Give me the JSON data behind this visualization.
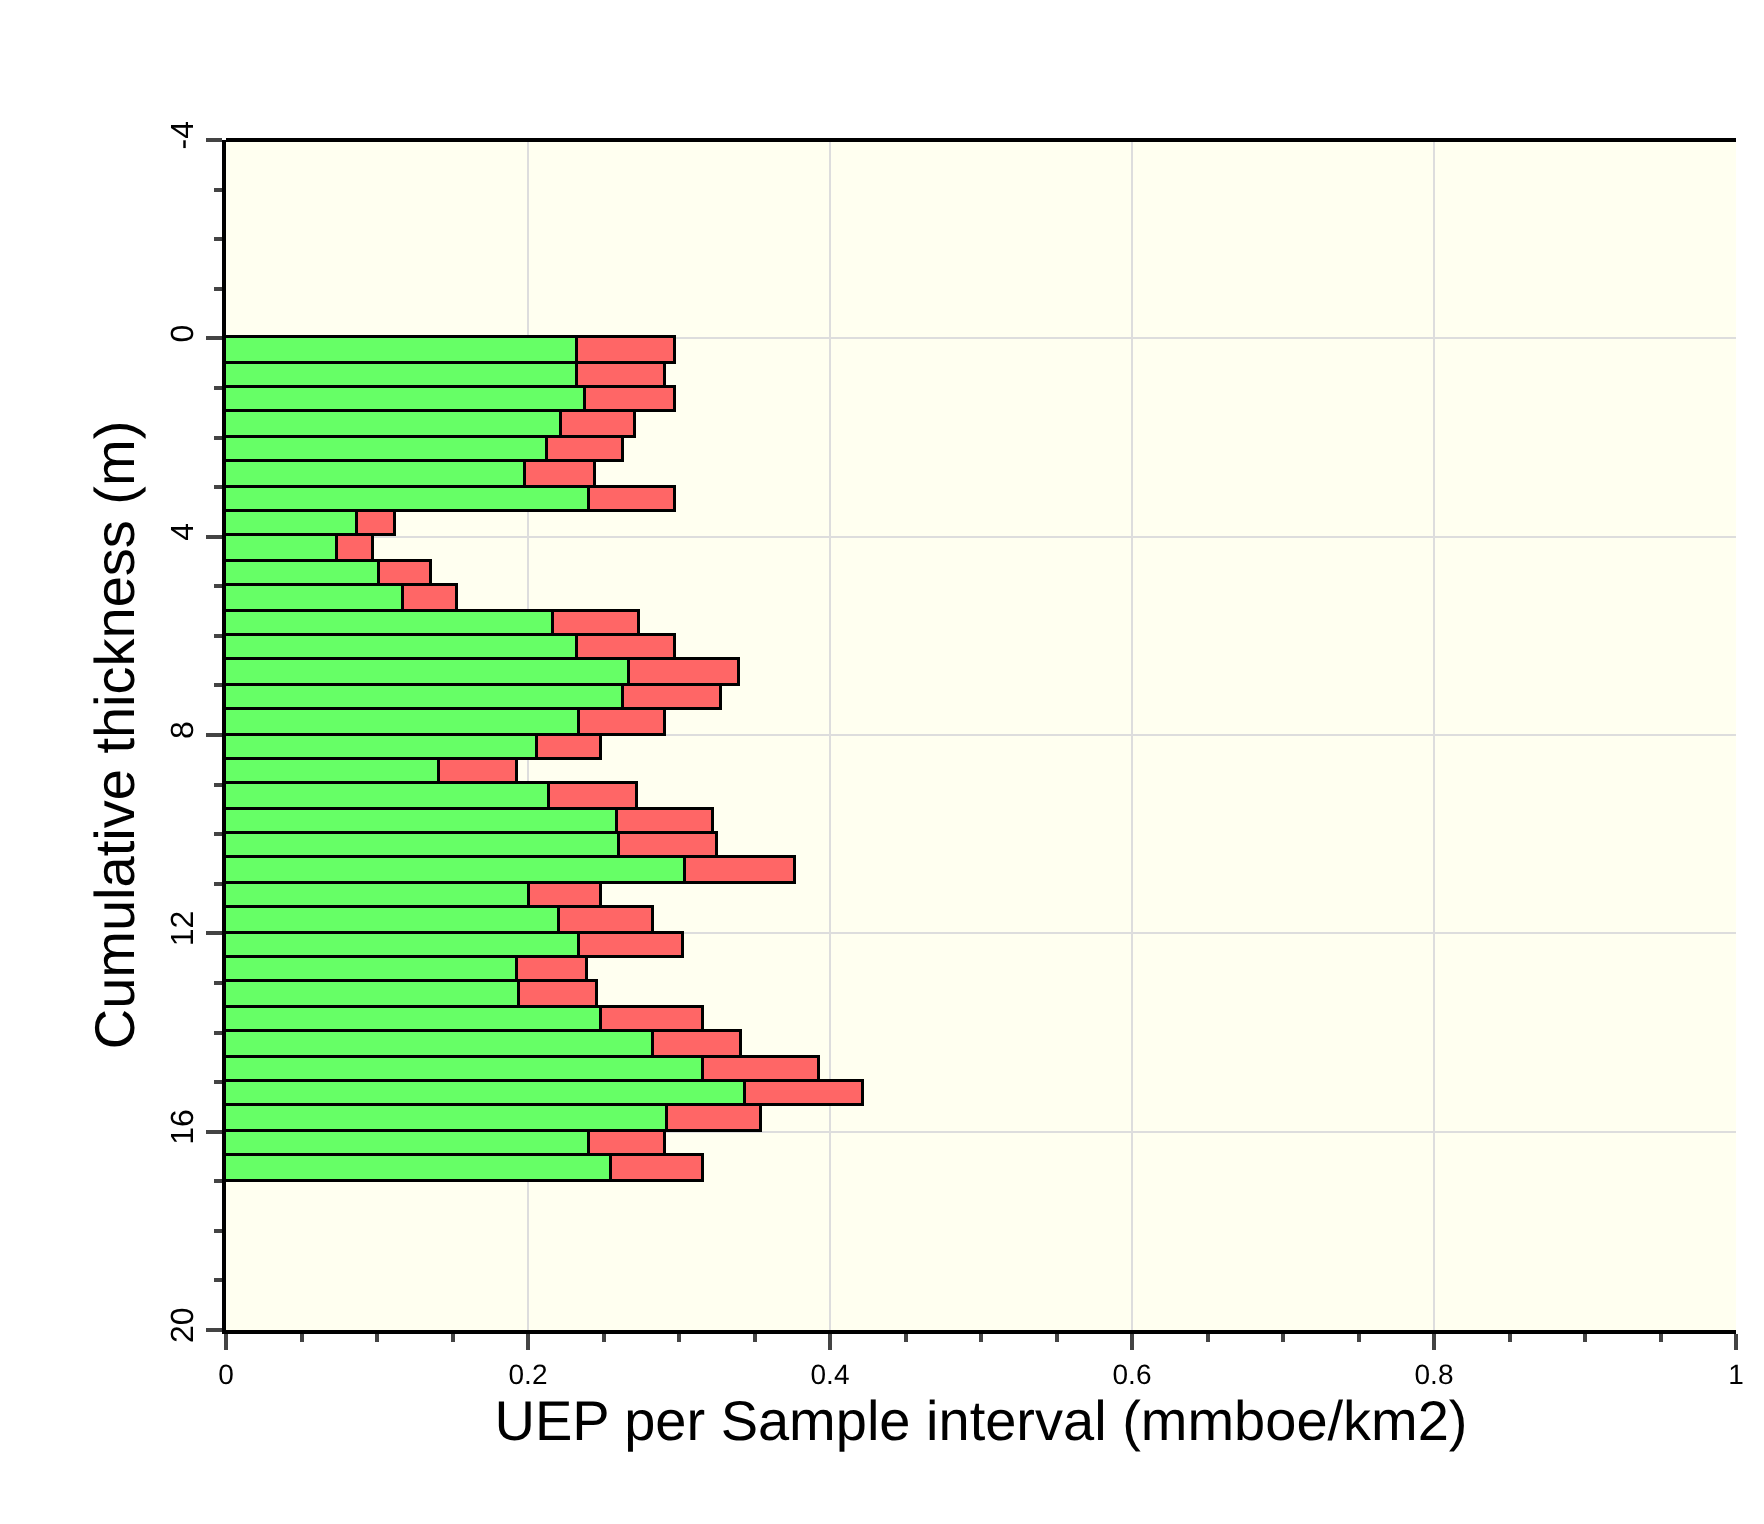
{
  "chart_data": {
    "type": "bar",
    "orientation": "horizontal",
    "stacked": true,
    "xlabel": "UEP per Sample interval (mmboe/km2)",
    "ylabel": "Cumulative thickness (m)",
    "x": [
      0.25,
      0.75,
      1.25,
      1.75,
      2.25,
      2.75,
      3.25,
      3.75,
      4.25,
      4.75,
      5.25,
      5.75,
      6.25,
      6.75,
      7.25,
      7.75,
      8.25,
      8.75,
      9.25,
      9.75,
      10.25,
      10.75,
      11.25,
      11.75,
      12.25,
      12.75,
      13.25,
      13.75,
      14.25,
      14.75,
      15.25,
      15.75,
      16.25,
      16.75
    ],
    "series": [
      {
        "color": "#66ff66",
        "values": [
          0.233,
          0.233,
          0.239,
          0.223,
          0.213,
          0.199,
          0.241,
          0.088,
          0.074,
          0.102,
          0.118,
          0.217,
          0.233,
          0.267,
          0.263,
          0.235,
          0.206,
          0.142,
          0.215,
          0.259,
          0.261,
          0.304,
          0.201,
          0.221,
          0.235,
          0.193,
          0.195,
          0.249,
          0.283,
          0.317,
          0.344,
          0.293,
          0.241,
          0.255
        ]
      },
      {
        "color": "#ff6666",
        "values": [
          0.065,
          0.058,
          0.059,
          0.048,
          0.05,
          0.046,
          0.057,
          0.024,
          0.024,
          0.034,
          0.035,
          0.057,
          0.065,
          0.073,
          0.065,
          0.056,
          0.043,
          0.052,
          0.058,
          0.064,
          0.065,
          0.074,
          0.048,
          0.062,
          0.068,
          0.047,
          0.052,
          0.068,
          0.059,
          0.077,
          0.078,
          0.062,
          0.05,
          0.061
        ]
      }
    ],
    "xlim": [
      0,
      1
    ],
    "xticks": [
      0,
      0.2,
      0.4,
      0.6,
      0.8,
      1
    ],
    "ylim": [
      20,
      -4
    ],
    "yticks": [
      -4,
      0,
      4,
      8,
      12,
      16,
      20
    ],
    "grid": true
  }
}
